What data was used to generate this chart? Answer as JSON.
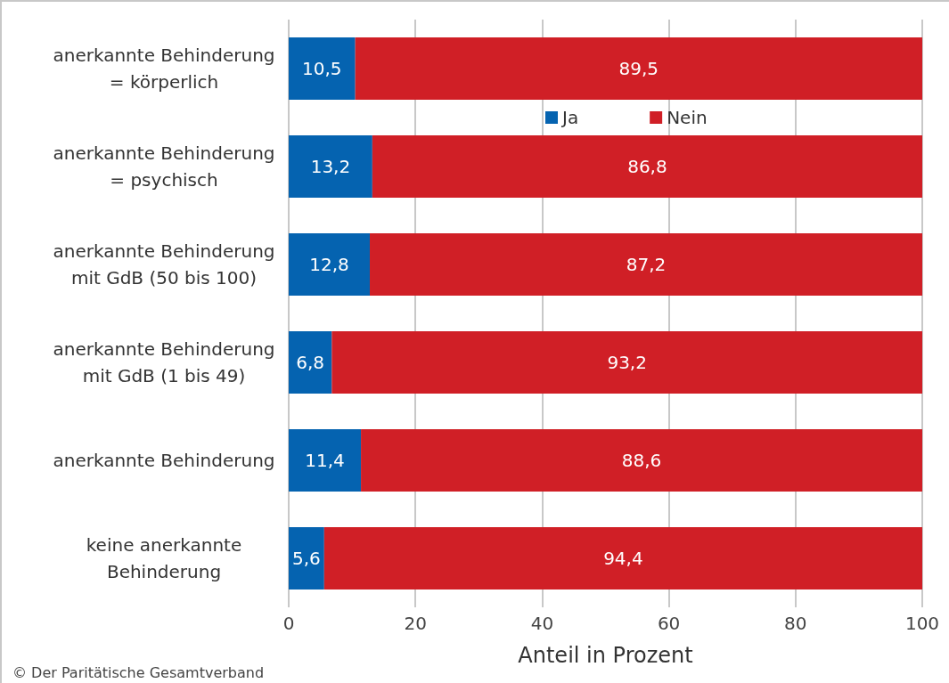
{
  "chart_data": {
    "type": "bar",
    "orientation": "horizontal",
    "stacked": true,
    "categories": [
      "anerkannte Behinderung\n= körperlich",
      "anerkannte Behinderung\n= psychisch",
      "anerkannte Behinderung\nmit GdB (50 bis 100)",
      "anerkannte Behinderung\nmit GdB (1 bis 49)",
      "anerkannte Behinderung",
      "keine anerkannte\nBehinderung"
    ],
    "series": [
      {
        "name": "Ja",
        "color": "#0563b0",
        "values": [
          10.5,
          13.2,
          12.8,
          6.8,
          11.4,
          5.6
        ],
        "value_labels": [
          "10,5",
          "13,2",
          "12,8",
          "6,8",
          "11,4",
          "5,6"
        ]
      },
      {
        "name": "Nein",
        "color": "#d01f26",
        "values": [
          89.5,
          86.8,
          87.2,
          93.2,
          88.6,
          94.4
        ],
        "value_labels": [
          "89,5",
          "86,8",
          "87,2",
          "93,2",
          "88,6",
          "94,4"
        ]
      }
    ],
    "xlabel": "Anteil in Prozent",
    "xlim": [
      0,
      100
    ],
    "xticks": [
      0,
      20,
      40,
      60,
      80,
      100
    ],
    "grid": "x",
    "legend": "top",
    "annotations": [
      "© Der Paritätische Gesamtverband"
    ]
  }
}
